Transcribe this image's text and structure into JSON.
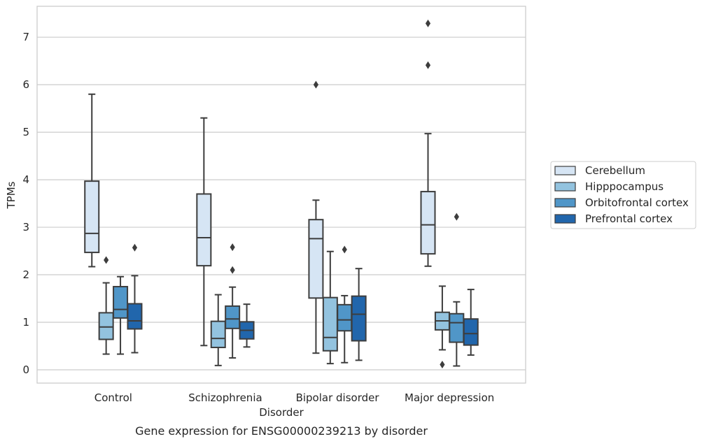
{
  "caption": "Gene expression for ENSG00000239213 by disorder",
  "chart_data": {
    "type": "boxplot",
    "xlabel": "Disorder",
    "ylabel": "TPMs",
    "ylim": [
      -0.28,
      7.65
    ],
    "yticks": [
      0,
      1,
      2,
      3,
      4,
      5,
      6,
      7
    ],
    "grid": "horizontal",
    "legend_position": "right",
    "categories": [
      "Control",
      "Schizophrenia",
      "Bipolar disorder",
      "Major depression"
    ],
    "series": [
      {
        "name": "Cerebellum",
        "color": "#d6e5f4",
        "boxes": [
          {
            "whislo": 2.17,
            "q1": 2.47,
            "med": 2.87,
            "q3": 3.97,
            "whishi": 5.8,
            "fliers": []
          },
          {
            "whislo": 0.51,
            "q1": 2.19,
            "med": 2.78,
            "q3": 3.7,
            "whishi": 5.3,
            "fliers": []
          },
          {
            "whislo": 0.35,
            "q1": 1.51,
            "med": 2.76,
            "q3": 3.16,
            "whishi": 3.57,
            "fliers": [
              6.0
            ]
          },
          {
            "whislo": 2.18,
            "q1": 2.44,
            "med": 3.05,
            "q3": 3.75,
            "whishi": 4.97,
            "fliers": [
              6.41,
              7.29
            ]
          }
        ]
      },
      {
        "name": "Hipppocampus",
        "color": "#93c3df",
        "boxes": [
          {
            "whislo": 0.33,
            "q1": 0.64,
            "med": 0.9,
            "q3": 1.2,
            "whishi": 1.83,
            "fliers": [
              2.31
            ]
          },
          {
            "whislo": 0.09,
            "q1": 0.47,
            "med": 0.66,
            "q3": 1.02,
            "whishi": 1.58,
            "fliers": []
          },
          {
            "whislo": 0.13,
            "q1": 0.4,
            "med": 0.68,
            "q3": 1.52,
            "whishi": 2.49,
            "fliers": []
          },
          {
            "whislo": 0.42,
            "q1": 0.84,
            "med": 1.03,
            "q3": 1.21,
            "whishi": 1.76,
            "fliers": [
              0.11
            ]
          }
        ]
      },
      {
        "name": "Orbitofrontal cortex",
        "color": "#5096c8",
        "boxes": [
          {
            "whislo": 0.33,
            "q1": 1.09,
            "med": 1.27,
            "q3": 1.75,
            "whishi": 1.96,
            "fliers": []
          },
          {
            "whislo": 0.25,
            "q1": 0.87,
            "med": 1.07,
            "q3": 1.34,
            "whishi": 1.74,
            "fliers": [
              2.1,
              2.58
            ]
          },
          {
            "whislo": 0.15,
            "q1": 0.82,
            "med": 1.05,
            "q3": 1.37,
            "whishi": 1.56,
            "fliers": [
              2.53
            ]
          },
          {
            "whislo": 0.08,
            "q1": 0.58,
            "med": 0.99,
            "q3": 1.18,
            "whishi": 1.43,
            "fliers": [
              3.22
            ]
          }
        ]
      },
      {
        "name": "Prefrontal cortex",
        "color": "#2166ac",
        "boxes": [
          {
            "whislo": 0.36,
            "q1": 0.86,
            "med": 1.03,
            "q3": 1.39,
            "whishi": 1.98,
            "fliers": [
              2.57
            ]
          },
          {
            "whislo": 0.48,
            "q1": 0.65,
            "med": 0.83,
            "q3": 1.01,
            "whishi": 1.38,
            "fliers": []
          },
          {
            "whislo": 0.2,
            "q1": 0.61,
            "med": 1.17,
            "q3": 1.55,
            "whishi": 2.13,
            "fliers": []
          },
          {
            "whislo": 0.31,
            "q1": 0.52,
            "med": 0.76,
            "q3": 1.07,
            "whishi": 1.69,
            "fliers": []
          }
        ]
      }
    ]
  }
}
